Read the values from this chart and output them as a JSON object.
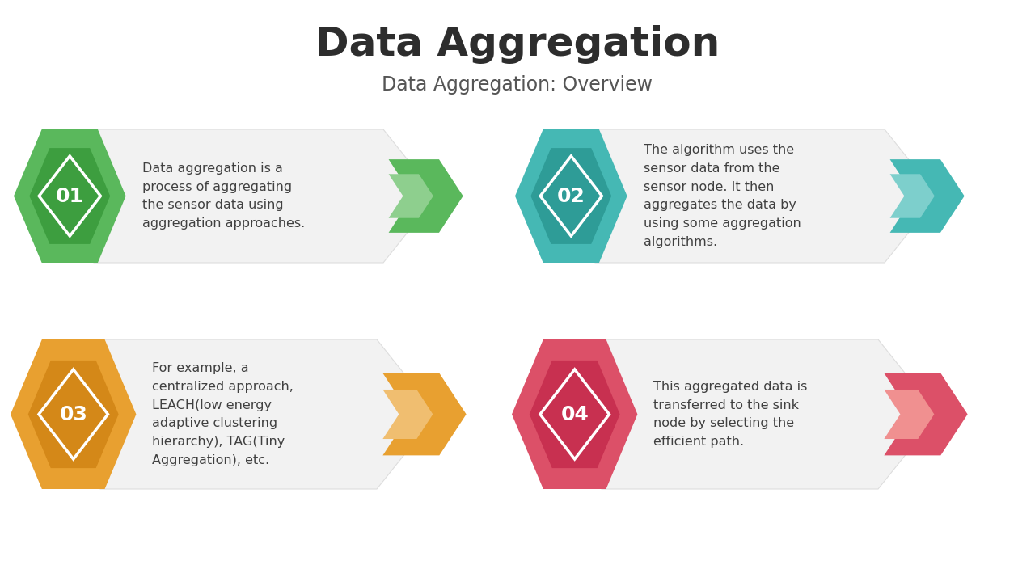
{
  "title": "Data Aggregation",
  "subtitle": "Data Aggregation: Overview",
  "title_fontsize": 36,
  "subtitle_fontsize": 17,
  "title_color": "#2d2d2d",
  "subtitle_color": "#555555",
  "background_color": "#ffffff",
  "cards": [
    {
      "number": "01",
      "text": "Data aggregation is a\nprocess of aggregating\nthe sensor data using\naggregation approaches.",
      "color_dark": "#3d9e3f",
      "color_mid": "#5ab85c",
      "color_light": "#8ecf8e",
      "col": 0,
      "row": 0
    },
    {
      "number": "02",
      "text": "The algorithm uses the\nsensor data from the\nsensor node. It then\naggregates the data by\nusing some aggregation\nalgorithms.",
      "color_dark": "#2e9c97",
      "color_mid": "#45b8b4",
      "color_light": "#7dcfcc",
      "col": 1,
      "row": 0
    },
    {
      "number": "03",
      "text": "For example, a\ncentralized approach,\nLEACH(low energy\nadaptive clustering\nhierarchy), TAG(Tiny\nAggregation), etc.",
      "color_dark": "#d48818",
      "color_mid": "#e8a030",
      "color_light": "#f0be70",
      "col": 0,
      "row": 1
    },
    {
      "number": "04",
      "text": "This aggregated data is\ntransferred to the sink\nnode by selecting the\nefficient path.",
      "color_dark": "#c83050",
      "color_mid": "#dc5068",
      "color_light": "#f09090",
      "col": 1,
      "row": 1
    }
  ]
}
